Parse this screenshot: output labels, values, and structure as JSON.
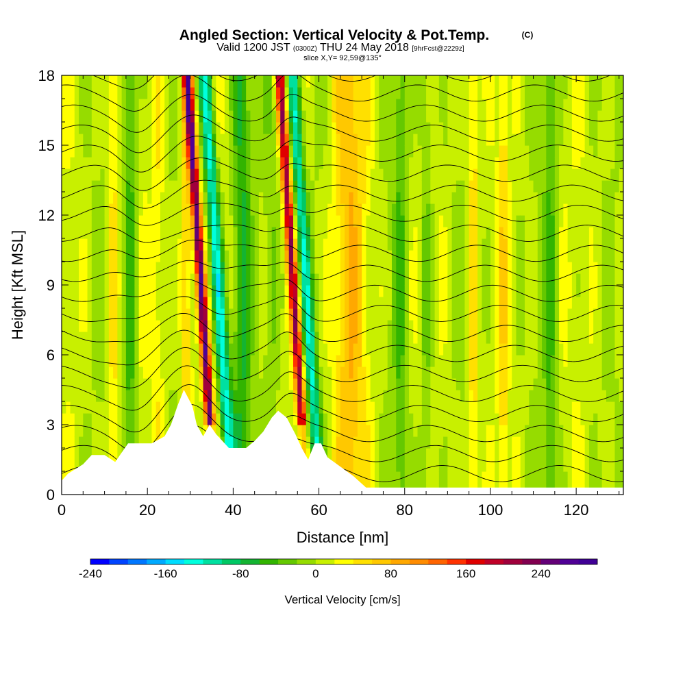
{
  "chart_data": {
    "type": "heatmap",
    "title": "Angled Section: Vertical Velocity & Pot.Temp.",
    "title_mark": "(C)",
    "subtitle": {
      "prefix": "Valid 1200 JST",
      "utc": "(0300Z)",
      "date": "THU 24 May 2018",
      "forecast": "[9hrFcst@2229z]"
    },
    "slice_label": "slice X,Y= 92,59@135°",
    "xlabel": "Distance [nm]",
    "ylabel": "Height [Kft MSL]",
    "xlim": [
      0,
      131
    ],
    "ylim": [
      0,
      18
    ],
    "x_ticks": [
      0,
      20,
      40,
      60,
      80,
      100,
      120
    ],
    "x_tick_labels": [
      "0",
      "20",
      "40",
      "60",
      "80",
      "100",
      "120"
    ],
    "y_ticks": [
      0,
      3,
      6,
      9,
      12,
      15,
      18
    ],
    "y_tick_labels": [
      "0",
      "3",
      "6",
      "9",
      "12",
      "15",
      "18"
    ],
    "colorbar": {
      "label": "Vertical Velocity [cm/s]",
      "min": -240,
      "max": 300,
      "step": 20,
      "tick_values": [
        -240,
        -160,
        -80,
        0,
        80,
        160,
        240
      ],
      "tick_labels": [
        "-240",
        "-160",
        "-80",
        "0",
        "80",
        "160",
        "240"
      ],
      "colors": [
        "#0000ff",
        "#0044ff",
        "#0077ff",
        "#00aaff",
        "#00ddff",
        "#00ffdd",
        "#00e0a0",
        "#00c864",
        "#14b432",
        "#32b400",
        "#64c800",
        "#96dc00",
        "#c8f000",
        "#ffff00",
        "#ffe000",
        "#ffc800",
        "#ffa800",
        "#ff8c00",
        "#ff6400",
        "#ff3200",
        "#e00000",
        "#c00028",
        "#a0003c",
        "#820050",
        "#640078",
        "#500096",
        "#400096"
      ]
    },
    "terrain_kft": [
      {
        "x": 0,
        "h": 0.6
      },
      {
        "x": 1.5,
        "h": 0.9
      },
      {
        "x": 5,
        "h": 1.3
      },
      {
        "x": 7,
        "h": 1.7
      },
      {
        "x": 10,
        "h": 1.7
      },
      {
        "x": 12.5,
        "h": 1.4
      },
      {
        "x": 14,
        "h": 1.8
      },
      {
        "x": 15.5,
        "h": 2.2
      },
      {
        "x": 18,
        "h": 2.2
      },
      {
        "x": 21,
        "h": 2.2
      },
      {
        "x": 24,
        "h": 2.5
      },
      {
        "x": 25.5,
        "h": 3.0
      },
      {
        "x": 27,
        "h": 3.8
      },
      {
        "x": 28.5,
        "h": 4.5
      },
      {
        "x": 30.5,
        "h": 3.8
      },
      {
        "x": 31.5,
        "h": 3.0
      },
      {
        "x": 33,
        "h": 2.5
      },
      {
        "x": 34.5,
        "h": 3.0
      },
      {
        "x": 36,
        "h": 2.6
      },
      {
        "x": 37.5,
        "h": 2.3
      },
      {
        "x": 39,
        "h": 2.0
      },
      {
        "x": 43,
        "h": 2.0
      },
      {
        "x": 45,
        "h": 2.3
      },
      {
        "x": 47,
        "h": 2.7
      },
      {
        "x": 49,
        "h": 3.3
      },
      {
        "x": 50.5,
        "h": 3.6
      },
      {
        "x": 52.5,
        "h": 3.3
      },
      {
        "x": 54.5,
        "h": 2.6
      },
      {
        "x": 56,
        "h": 2.0
      },
      {
        "x": 57.5,
        "h": 1.5
      },
      {
        "x": 59,
        "h": 2.2
      },
      {
        "x": 60.5,
        "h": 2.2
      },
      {
        "x": 62,
        "h": 1.6
      },
      {
        "x": 65,
        "h": 1.2
      },
      {
        "x": 68,
        "h": 0.8
      },
      {
        "x": 71,
        "h": 0.3
      },
      {
        "x": 131,
        "h": 0.3
      }
    ],
    "updraft_cores": [
      {
        "x": 12,
        "w": 1.2,
        "value": 40
      },
      {
        "x": 16,
        "w": 1.5,
        "value": -60
      },
      {
        "x": 22.5,
        "w": 1.5,
        "value": 30
      },
      {
        "x": 29,
        "w": 1.3,
        "value": 60
      },
      {
        "x": 32.5,
        "w": 1.0,
        "value": 240
      },
      {
        "x": 36.5,
        "w": 1.5,
        "value": -140
      },
      {
        "x": 42,
        "w": 2.0,
        "value": -60
      },
      {
        "x": 49,
        "w": 2.0,
        "value": -30
      },
      {
        "x": 54,
        "w": 1.0,
        "value": 200
      },
      {
        "x": 57,
        "w": 1.4,
        "value": -120
      },
      {
        "x": 67,
        "w": 4.0,
        "value": 60
      },
      {
        "x": 79,
        "w": 1.5,
        "value": -40
      },
      {
        "x": 85,
        "w": 1.5,
        "value": -35
      },
      {
        "x": 96,
        "w": 1.2,
        "value": 50
      },
      {
        "x": 103,
        "w": 1.0,
        "value": 40
      },
      {
        "x": 114,
        "w": 1.5,
        "value": -45
      }
    ],
    "isentropes_K": [
      300,
      302,
      304,
      306,
      308,
      310,
      312,
      314,
      316,
      318,
      320,
      322,
      324,
      326,
      328,
      330,
      332,
      334,
      336,
      338,
      340
    ]
  }
}
